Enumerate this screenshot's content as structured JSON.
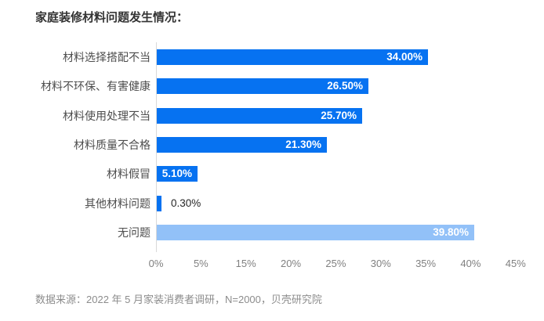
{
  "title": "家庭装修材料问题发生情况：",
  "source": "数据来源：2022 年 5 月家装消费者调研，N=2000，贝壳研究院",
  "colors": {
    "bar_primary": "#0672F1",
    "bar_light": "#92C1F8",
    "axis_line": "#D9D9D9",
    "title_text": "#333333",
    "category_text": "#4D4D4D",
    "tick_text": "#808080",
    "source_text": "#8C8C8C",
    "value_label_inside": "#FFFFFF",
    "value_label_outside": "#262626"
  },
  "chart_data": {
    "type": "bar",
    "orientation": "horizontal",
    "title": "家庭装修材料问题发生情况：",
    "categories": [
      "材料选择搭配不当",
      "材料不环保、有害健康",
      "材料使用处理不当",
      "材料质量不合格",
      "材料假冒",
      "其他材料问题",
      "无问题"
    ],
    "values": [
      34.0,
      26.5,
      25.7,
      21.3,
      5.1,
      0.3,
      39.8
    ],
    "value_labels": [
      "34.00%",
      "26.50%",
      "25.70%",
      "21.30%",
      "5.10%",
      "0.30%",
      "39.80%"
    ],
    "bar_color_keys": [
      "bar_primary",
      "bar_primary",
      "bar_primary",
      "bar_primary",
      "bar_primary",
      "bar_primary",
      "bar_light"
    ],
    "xlabel": "",
    "ylabel": "",
    "xlim": [
      0,
      45
    ],
    "x_tick_labels": [
      "0%",
      "5%",
      "15%",
      "20%",
      "25%",
      "30%",
      "35%",
      "40%",
      "45%"
    ],
    "grid": false,
    "legend": false,
    "value_label_position": "inside-end, outside for smallest bar"
  }
}
